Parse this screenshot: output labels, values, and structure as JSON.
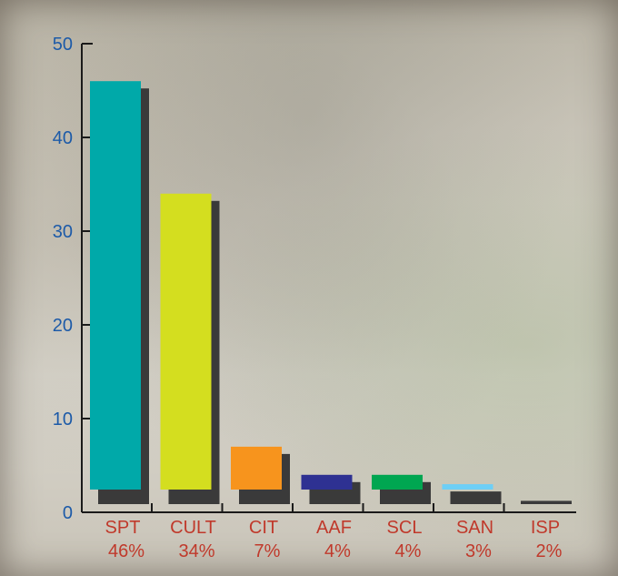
{
  "chart_data": {
    "type": "bar",
    "title": "",
    "xlabel": "",
    "ylabel": "",
    "ylim": [
      0,
      50
    ],
    "yticks": [
      0,
      10,
      20,
      30,
      40,
      50
    ],
    "grid": false,
    "categories": [
      "SPT",
      "CULT",
      "CIT",
      "AAF",
      "SCL",
      "SAN",
      "ISP"
    ],
    "percent_labels": [
      "46%",
      "34%",
      "7%",
      "4%",
      "4%",
      "3%",
      "2%"
    ],
    "values": [
      46,
      34,
      7,
      4,
      4,
      3,
      2
    ],
    "bar_colors": [
      "#00a9a9",
      "#d4de1f",
      "#f7941d",
      "#2e3192",
      "#00a651",
      "#6dcff6",
      "#00aeef"
    ],
    "shadow_color": "#3a3a3a",
    "axis_color": "#1a1a1a",
    "tick_label_color": "#1c5aa8",
    "category_label_color": "#c0392b"
  }
}
